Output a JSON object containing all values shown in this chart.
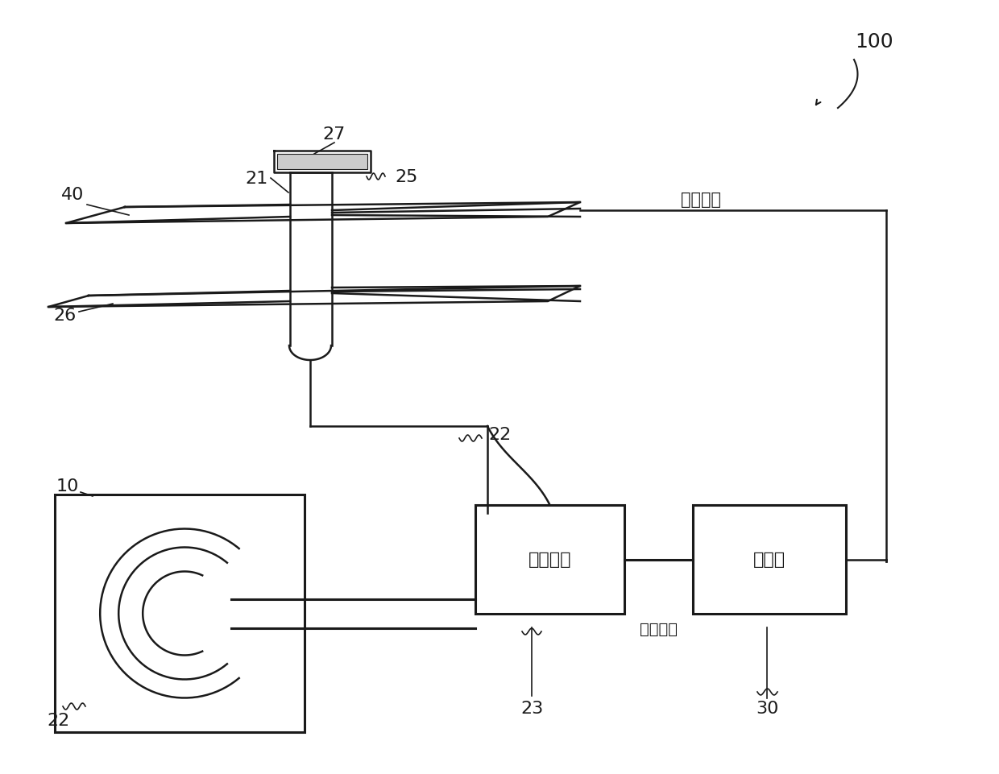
{
  "bg_color": "#ffffff",
  "line_color": "#1a1a1a",
  "fig_width": 12.4,
  "fig_height": 9.62,
  "text_power": "动力装置",
  "text_controller": "控制器",
  "text_ctrl_cmd": "控制指令"
}
